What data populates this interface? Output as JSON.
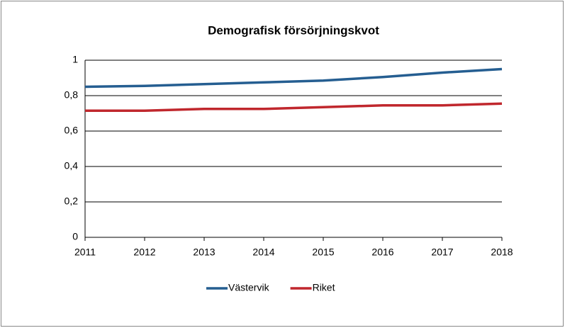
{
  "chart_data": {
    "type": "line",
    "title": "Demografisk försörjningskvot",
    "x": [
      2011,
      2012,
      2013,
      2014,
      2015,
      2016,
      2017,
      2018
    ],
    "xlim": [
      2011,
      2018
    ],
    "xticks": [
      2011,
      2012,
      2013,
      2014,
      2015,
      2016,
      2017,
      2018
    ],
    "ylim": [
      0,
      1
    ],
    "yticks": [
      0,
      {
        "value": 0.2,
        "label": "0,2"
      },
      {
        "value": 0.4,
        "label": "0,4"
      },
      {
        "value": 0.6,
        "label": "0,6"
      },
      {
        "value": 0.8,
        "label": "0,8"
      },
      1
    ],
    "grid": true,
    "legend": "bottom",
    "series": [
      {
        "name": "Västervik",
        "color": "#255e91",
        "values": [
          0.85,
          0.855,
          0.865,
          0.875,
          0.885,
          0.905,
          0.93,
          0.95
        ]
      },
      {
        "name": "Riket",
        "color": "#c0272d",
        "values": [
          0.715,
          0.715,
          0.725,
          0.725,
          0.735,
          0.745,
          0.745,
          0.755
        ]
      }
    ]
  }
}
